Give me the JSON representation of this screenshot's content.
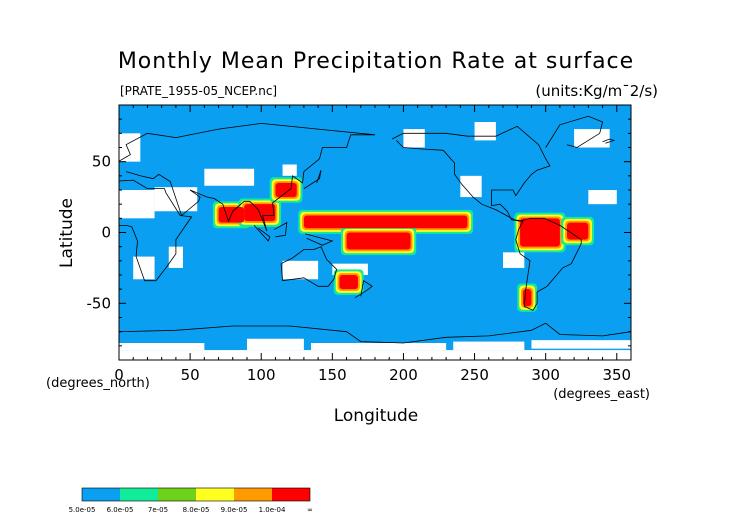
{
  "title": "Monthly Mean Precipitation Rate at surface",
  "source_label": "[PRATE_1955-05_NCEP.nc]",
  "units_label": "(units:Kg/m¯2/s)",
  "colors": {
    "level_0": "#0a9ff0",
    "level_1": "#10ec9a",
    "level_2": "#6fd11a",
    "level_3": "#ffff20",
    "level_4": "#ff9a00",
    "level_5": "#ff0000",
    "no_data": "#ffffff",
    "coastline": "#000000"
  },
  "chart_data": {
    "type": "heatmap",
    "title": "Monthly Mean Precipitation Rate at surface",
    "xlabel": "Longitude",
    "ylabel": "Latitude",
    "x_unit_label": "(degrees_east)",
    "y_unit_label": "(degrees_north)",
    "xlim": [
      0,
      360
    ],
    "ylim": [
      -90,
      90
    ],
    "x_ticks": [
      0,
      50,
      100,
      150,
      200,
      250,
      300,
      350
    ],
    "y_ticks": [
      -50,
      0,
      50
    ],
    "colorbar": {
      "labels": [
        "5.0e-05",
        "6.0e-05",
        "7e-05",
        "8.0e-05",
        "9.0e-05",
        "1.0e-04",
        "∞"
      ],
      "level_bounds": [
        5e-05,
        6e-05,
        7e-05,
        8e-05,
        9e-05,
        0.0001
      ]
    },
    "high_precip_regions": [
      {
        "lon": [
          70,
          88
        ],
        "lat": [
          7,
          18
        ],
        "level": 5
      },
      {
        "lon": [
          88,
          110
        ],
        "lat": [
          8,
          20
        ],
        "level": 5
      },
      {
        "lon": [
          110,
          125
        ],
        "lat": [
          25,
          35
        ],
        "level": 5
      },
      {
        "lon": [
          130,
          245
        ],
        "lat": [
          3,
          12
        ],
        "level": 5
      },
      {
        "lon": [
          160,
          205
        ],
        "lat": [
          -12,
          0
        ],
        "level": 5
      },
      {
        "lon": [
          282,
          310
        ],
        "lat": [
          -10,
          10
        ],
        "level": 5
      },
      {
        "lon": [
          315,
          330
        ],
        "lat": [
          -5,
          7
        ],
        "level": 5
      },
      {
        "lon": [
          155,
          168
        ],
        "lat": [
          -40,
          -30
        ],
        "level": 5
      },
      {
        "lon": [
          284,
          290
        ],
        "lat": [
          -52,
          -40
        ],
        "level": 5
      }
    ]
  }
}
